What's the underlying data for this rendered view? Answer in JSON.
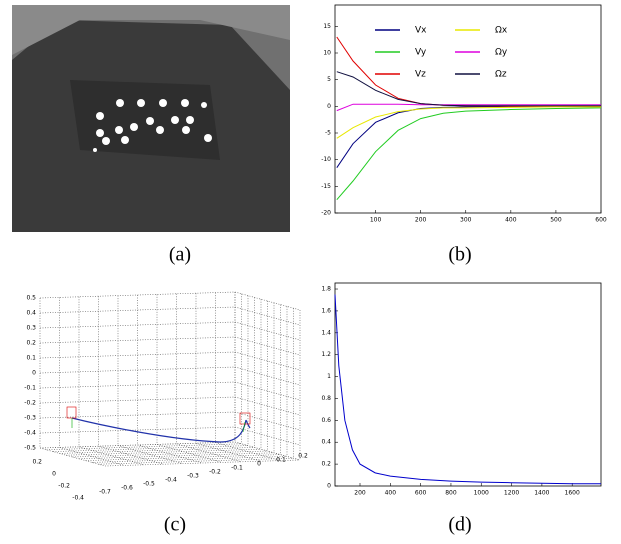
{
  "panel_a": {
    "caption": "(a)"
  },
  "panel_c": {
    "caption": "(c)",
    "zticks": [
      "0.5",
      "0.4",
      "0.3",
      "0.2",
      "0.1",
      "0",
      "-0.1",
      "-0.2",
      "-0.3",
      "-0.4",
      "-0.5"
    ],
    "depth_ticks": [
      "0.2",
      "0",
      "-0.2",
      "-0.4"
    ],
    "front_ticks": [
      "-0.7",
      "-0.6",
      "-0.5",
      "-0.4",
      "-0.3",
      "-0.2",
      "-0.1",
      "0",
      "0.1",
      "0.2"
    ]
  },
  "chart_data": [
    {
      "type": "line",
      "caption": "(b)",
      "x": [
        14,
        50,
        100,
        150,
        200,
        250,
        300,
        400,
        500,
        600
      ],
      "series": [
        {
          "name": "Vx",
          "color": "#000080",
          "values": [
            -11.5,
            -7,
            -3,
            -1.2,
            -0.4,
            -0.2,
            -0.1,
            0,
            0,
            0
          ]
        },
        {
          "name": "Vy",
          "color": "#22cc22",
          "values": [
            -17.5,
            -14,
            -8.5,
            -4.5,
            -2.3,
            -1.3,
            -0.9,
            -0.6,
            -0.4,
            -0.3
          ]
        },
        {
          "name": "Vz",
          "color": "#e00000",
          "values": [
            13,
            8.5,
            4,
            1.5,
            0.5,
            0.2,
            0.1,
            0,
            0,
            0
          ]
        },
        {
          "name": "Ωx",
          "color": "#e8e800",
          "values": [
            -6,
            -4,
            -2,
            -1,
            -0.5,
            -0.3,
            -0.3,
            -0.2,
            -0.1,
            -0.1
          ]
        },
        {
          "name": "Ωy",
          "color": "#dd00dd",
          "values": [
            -0.8,
            0.4,
            0.4,
            0.4,
            0.3,
            0.3,
            0.3,
            0.3,
            0.3,
            0.3
          ]
        },
        {
          "name": "Ωz",
          "color": "#101040",
          "values": [
            6.5,
            5.5,
            3,
            1.3,
            0.5,
            0.2,
            0.1,
            0.1,
            0.1,
            0.1
          ]
        }
      ],
      "xlim": [
        10,
        600
      ],
      "xticks": [
        100,
        200,
        300,
        400,
        500,
        600
      ],
      "ylim": [
        -20,
        19
      ],
      "yticks": [
        -20,
        -15,
        -10,
        -5,
        0,
        5,
        10,
        15
      ]
    },
    {
      "type": "line",
      "caption": "(d)",
      "x": [
        35,
        60,
        100,
        150,
        200,
        300,
        400,
        600,
        800,
        1000,
        1200,
        1400,
        1600,
        1790
      ],
      "series": [
        {
          "color": "#0000cc",
          "values": [
            1.75,
            1.1,
            0.6,
            0.33,
            0.2,
            0.12,
            0.09,
            0.06,
            0.045,
            0.035,
            0.03,
            0.025,
            0.02,
            0.02
          ]
        }
      ],
      "xlim": [
        35,
        1790
      ],
      "xticks": [
        200,
        400,
        600,
        800,
        1000,
        1200,
        1400,
        1600
      ],
      "ylim": [
        0,
        1.855
      ],
      "yticks": [
        0,
        0.2,
        0.4,
        0.6,
        0.8,
        1,
        1.2,
        1.4,
        1.6,
        1.8
      ]
    }
  ]
}
